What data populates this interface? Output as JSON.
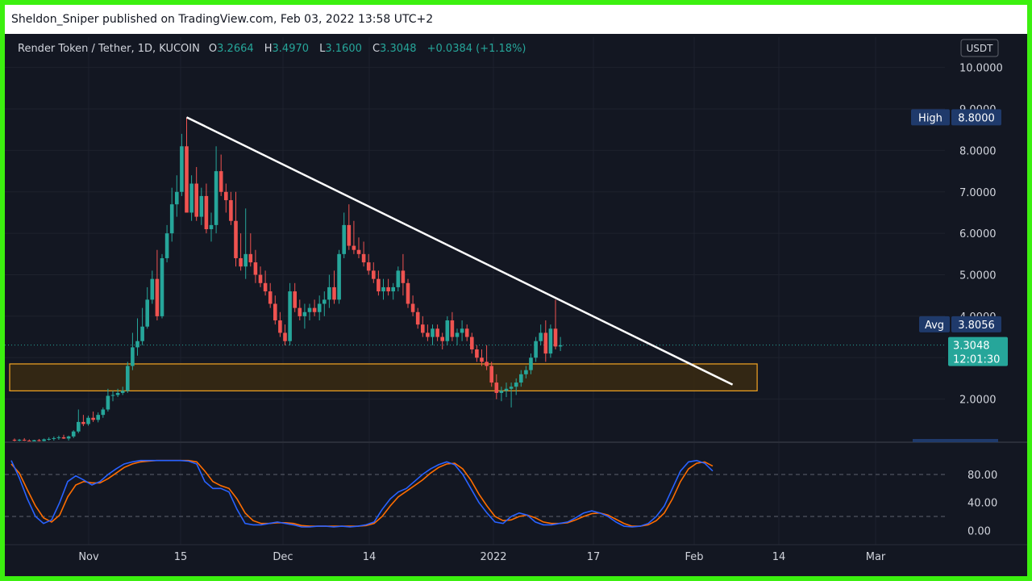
{
  "publish_bar": {
    "text": "Sheldon_Sniper published on TradingView.com, Feb 03, 2022 13:58 UTC+2"
  },
  "header": {
    "symbol": "Render Token / Tether, 1D, KUCOIN",
    "o_label": "O",
    "o_value": "3.2664",
    "h_label": "H",
    "h_value": "3.4970",
    "l_label": "L",
    "l_value": "3.1600",
    "c_label": "C",
    "c_value": "3.3048",
    "change": "+0.0384 (+1.18%)"
  },
  "currency_badge": "USDT",
  "markers": {
    "high_label": "High",
    "high_value": "8.8000",
    "avg_label": "Avg",
    "avg_value": "3.8056",
    "last_price": "3.3048",
    "countdown": "12:01:30"
  },
  "colors": {
    "background": "#131722",
    "up": "#26a69a",
    "down": "#ef5350",
    "trendline": "#ffffff",
    "zone_border": "#f5a623",
    "zone_fill": "#3a2a12",
    "stoch_k": "#2962ff",
    "stoch_d": "#ff6d00",
    "frame": "#3cf00f"
  },
  "chart_data": [
    {
      "type": "candlestick",
      "title": "Render Token / Tether, 1D, KUCOIN",
      "ylim": [
        1.0,
        10.5
      ],
      "y_ticks": [
        "2.0000",
        "3.0000",
        "4.0000",
        "5.0000",
        "6.0000",
        "7.0000",
        "8.0000",
        "9.0000",
        "10.0000"
      ],
      "x_ticks": [
        "Nov",
        "15",
        "Dec",
        "14",
        "2022",
        "17",
        "Feb",
        "14",
        "Mar"
      ],
      "bars_ohlc": [
        [
          1.02,
          1.05,
          0.98,
          1.0
        ],
        [
          1.0,
          1.04,
          0.97,
          1.02
        ],
        [
          1.02,
          1.06,
          0.99,
          1.0
        ],
        [
          1.0,
          1.03,
          0.96,
          0.98
        ],
        [
          0.98,
          1.02,
          0.95,
          1.01
        ],
        [
          1.01,
          1.04,
          0.98,
          0.99
        ],
        [
          0.99,
          1.05,
          0.97,
          1.03
        ],
        [
          1.03,
          1.08,
          1.0,
          1.04
        ],
        [
          1.04,
          1.1,
          1.0,
          1.06
        ],
        [
          1.06,
          1.12,
          1.02,
          1.08
        ],
        [
          1.08,
          1.14,
          1.04,
          1.05
        ],
        [
          1.05,
          1.12,
          1.0,
          1.1
        ],
        [
          1.1,
          1.25,
          1.06,
          1.22
        ],
        [
          1.22,
          1.75,
          1.18,
          1.45
        ],
        [
          1.45,
          1.62,
          1.35,
          1.4
        ],
        [
          1.4,
          1.6,
          1.36,
          1.55
        ],
        [
          1.55,
          1.7,
          1.45,
          1.5
        ],
        [
          1.5,
          1.68,
          1.44,
          1.62
        ],
        [
          1.62,
          1.8,
          1.55,
          1.75
        ],
        [
          1.75,
          2.25,
          1.7,
          2.08
        ],
        [
          2.08,
          2.2,
          1.95,
          2.1
        ],
        [
          2.1,
          2.25,
          2.05,
          2.15
        ],
        [
          2.15,
          2.3,
          2.1,
          2.2
        ],
        [
          2.2,
          2.9,
          2.15,
          2.8
        ],
        [
          2.8,
          3.6,
          2.7,
          3.25
        ],
        [
          3.25,
          3.95,
          3.05,
          3.4
        ],
        [
          3.4,
          4.2,
          3.3,
          3.75
        ],
        [
          3.75,
          4.7,
          3.7,
          4.4
        ],
        [
          4.4,
          5.1,
          4.3,
          4.9
        ],
        [
          4.9,
          5.6,
          3.9,
          4.0
        ],
        [
          4.0,
          5.5,
          3.95,
          5.4
        ],
        [
          5.4,
          6.2,
          5.3,
          6.0
        ],
        [
          6.0,
          7.1,
          5.8,
          6.7
        ],
        [
          6.7,
          7.4,
          6.4,
          7.0
        ],
        [
          7.0,
          8.4,
          6.9,
          8.1
        ],
        [
          8.1,
          8.8,
          6.5,
          6.5
        ],
        [
          6.5,
          7.4,
          6.3,
          7.2
        ],
        [
          7.2,
          7.6,
          6.3,
          6.4
        ],
        [
          6.4,
          7.1,
          6.2,
          6.9
        ],
        [
          6.9,
          7.2,
          6.0,
          6.1
        ],
        [
          6.1,
          6.5,
          5.8,
          6.2
        ],
        [
          6.2,
          8.1,
          6.0,
          7.5
        ],
        [
          7.5,
          7.9,
          6.9,
          7.0
        ],
        [
          7.0,
          7.2,
          6.5,
          6.8
        ],
        [
          6.8,
          7.0,
          6.2,
          6.3
        ],
        [
          6.3,
          7.0,
          5.2,
          5.4
        ],
        [
          5.4,
          6.0,
          5.1,
          5.2
        ],
        [
          5.2,
          6.6,
          4.9,
          5.5
        ],
        [
          5.5,
          6.0,
          5.2,
          5.3
        ],
        [
          5.3,
          5.6,
          4.8,
          5.0
        ],
        [
          5.0,
          5.2,
          4.7,
          4.8
        ],
        [
          4.8,
          5.1,
          4.5,
          4.6
        ],
        [
          4.6,
          4.8,
          4.2,
          4.3
        ],
        [
          4.3,
          4.5,
          3.8,
          3.9
        ],
        [
          3.9,
          4.1,
          3.5,
          3.6
        ],
        [
          3.6,
          3.8,
          3.3,
          3.4
        ],
        [
          3.4,
          4.8,
          3.3,
          4.6
        ],
        [
          4.6,
          4.8,
          4.1,
          4.2
        ],
        [
          4.2,
          4.4,
          3.9,
          4.0
        ],
        [
          4.0,
          4.3,
          3.7,
          4.1
        ],
        [
          4.1,
          4.3,
          3.9,
          4.2
        ],
        [
          4.2,
          4.4,
          4.0,
          4.1
        ],
        [
          4.1,
          4.5,
          3.9,
          4.3
        ],
        [
          4.3,
          4.6,
          4.0,
          4.4
        ],
        [
          4.4,
          5.0,
          4.2,
          4.7
        ],
        [
          4.7,
          5.1,
          4.3,
          4.4
        ],
        [
          4.4,
          5.6,
          4.3,
          5.5
        ],
        [
          5.5,
          6.5,
          5.4,
          6.2
        ],
        [
          6.2,
          6.7,
          5.6,
          5.7
        ],
        [
          5.7,
          6.3,
          5.5,
          5.6
        ],
        [
          5.6,
          5.9,
          5.4,
          5.5
        ],
        [
          5.5,
          5.8,
          5.2,
          5.3
        ],
        [
          5.3,
          5.5,
          5.0,
          5.1
        ],
        [
          5.1,
          5.3,
          4.8,
          4.9
        ],
        [
          4.9,
          5.1,
          4.5,
          4.6
        ],
        [
          4.6,
          4.9,
          4.4,
          4.7
        ],
        [
          4.7,
          4.9,
          4.5,
          4.6
        ],
        [
          4.6,
          4.8,
          4.4,
          4.7
        ],
        [
          4.7,
          5.2,
          4.6,
          5.1
        ],
        [
          5.1,
          5.5,
          4.5,
          4.8
        ],
        [
          4.8,
          4.9,
          4.2,
          4.3
        ],
        [
          4.3,
          4.5,
          4.0,
          4.1
        ],
        [
          4.1,
          4.2,
          3.7,
          3.8
        ],
        [
          3.8,
          4.0,
          3.5,
          3.6
        ],
        [
          3.6,
          3.8,
          3.4,
          3.5
        ],
        [
          3.5,
          3.8,
          3.3,
          3.7
        ],
        [
          3.7,
          3.8,
          3.4,
          3.5
        ],
        [
          3.5,
          3.6,
          3.2,
          3.4
        ],
        [
          3.4,
          4.0,
          3.3,
          3.9
        ],
        [
          3.9,
          4.1,
          3.4,
          3.5
        ],
        [
          3.5,
          3.7,
          3.3,
          3.6
        ],
        [
          3.6,
          3.9,
          3.4,
          3.7
        ],
        [
          3.7,
          3.8,
          3.4,
          3.5
        ],
        [
          3.5,
          3.6,
          3.1,
          3.2
        ],
        [
          3.2,
          3.3,
          2.9,
          3.0
        ],
        [
          3.0,
          3.2,
          2.8,
          2.9
        ],
        [
          2.9,
          3.3,
          2.7,
          2.8
        ],
        [
          2.8,
          2.9,
          2.3,
          2.4
        ],
        [
          2.4,
          2.6,
          2.0,
          2.15
        ],
        [
          2.15,
          2.3,
          1.95,
          2.2
        ],
        [
          2.2,
          2.4,
          2.05,
          2.25
        ],
        [
          2.25,
          2.4,
          1.8,
          2.3
        ],
        [
          2.3,
          2.5,
          2.1,
          2.4
        ],
        [
          2.4,
          2.7,
          2.3,
          2.6
        ],
        [
          2.6,
          2.8,
          2.5,
          2.7
        ],
        [
          2.7,
          3.1,
          2.6,
          3.0
        ],
        [
          3.0,
          3.5,
          2.9,
          3.4
        ],
        [
          3.4,
          3.8,
          3.3,
          3.6
        ],
        [
          3.6,
          3.9,
          2.9,
          3.1
        ],
        [
          3.1,
          3.8,
          3.0,
          3.7
        ],
        [
          3.7,
          4.4,
          3.2,
          3.27
        ],
        [
          3.27,
          3.5,
          3.16,
          3.3
        ]
      ],
      "trendline": {
        "from": {
          "bar": 35,
          "price": 8.8
        },
        "to": {
          "bar": 146,
          "price": 2.35
        }
      },
      "zone": {
        "from_bar": 0,
        "to_bar": 151,
        "top": 2.85,
        "bottom": 2.2
      },
      "last_price_line": 3.3048
    },
    {
      "type": "line",
      "title": "",
      "ylim": [
        -10,
        110
      ],
      "y_ticks": [
        "0.00",
        "40.00",
        "80.00"
      ],
      "hlines": [
        80,
        20
      ],
      "series": [
        {
          "values": [
            100,
            75,
            45,
            20,
            10,
            15,
            40,
            70,
            78,
            72,
            65,
            70,
            80,
            88,
            95,
            98,
            100,
            100,
            100,
            100,
            100,
            100,
            99,
            95,
            70,
            60,
            60,
            55,
            30,
            10,
            8,
            8,
            10,
            12,
            10,
            8,
            5,
            5,
            6,
            6,
            5,
            6,
            5,
            6,
            8,
            12,
            30,
            45,
            55,
            60,
            70,
            80,
            88,
            94,
            98,
            94,
            80,
            60,
            40,
            25,
            12,
            10,
            20,
            25,
            22,
            12,
            8,
            8,
            10,
            12,
            18,
            25,
            28,
            25,
            20,
            12,
            6,
            5,
            6,
            10,
            20,
            35,
            60,
            85,
            98,
            100,
            96,
            85
          ]
        },
        {
          "values": [
            95,
            82,
            58,
            35,
            18,
            12,
            22,
            48,
            65,
            70,
            68,
            68,
            74,
            82,
            90,
            95,
            98,
            99,
            100,
            100,
            100,
            100,
            100,
            98,
            85,
            70,
            64,
            60,
            45,
            25,
            14,
            10,
            10,
            11,
            11,
            10,
            7,
            6,
            6,
            6,
            6,
            6,
            6,
            6,
            7,
            10,
            20,
            35,
            48,
            56,
            64,
            72,
            82,
            90,
            95,
            96,
            88,
            72,
            52,
            35,
            20,
            14,
            15,
            20,
            22,
            18,
            12,
            10,
            10,
            11,
            15,
            20,
            24,
            25,
            22,
            16,
            10,
            6,
            6,
            8,
            14,
            25,
            45,
            70,
            88,
            96,
            98,
            92
          ]
        }
      ]
    }
  ]
}
